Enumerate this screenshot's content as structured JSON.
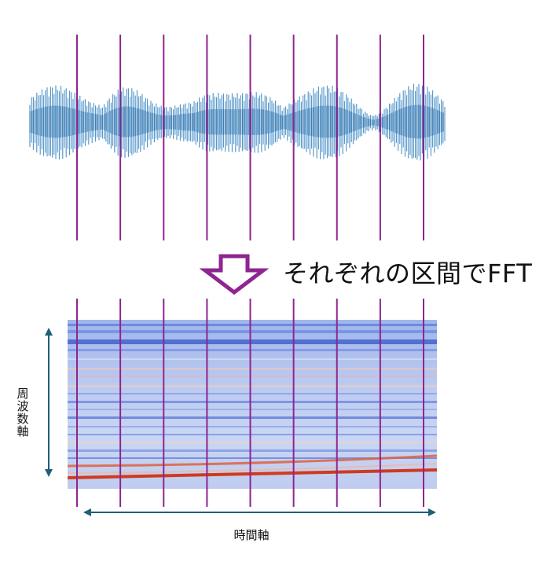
{
  "caption": "それぞれの区間でFFT",
  "y_axis_label": "周波数軸",
  "x_axis_label": "時間軸",
  "segment_count": 9,
  "colors": {
    "waveform": "#2f7fbe",
    "waveform_dark": "#1f67a6",
    "segment_line": "#8e2590",
    "arrow": "#8e2590",
    "axis_arrow": "#1f5f77",
    "spectrogram_low": "#3a5bd0",
    "spectrogram_mid": "#c6d4f2",
    "spectrogram_high": "#d03a1e"
  }
}
